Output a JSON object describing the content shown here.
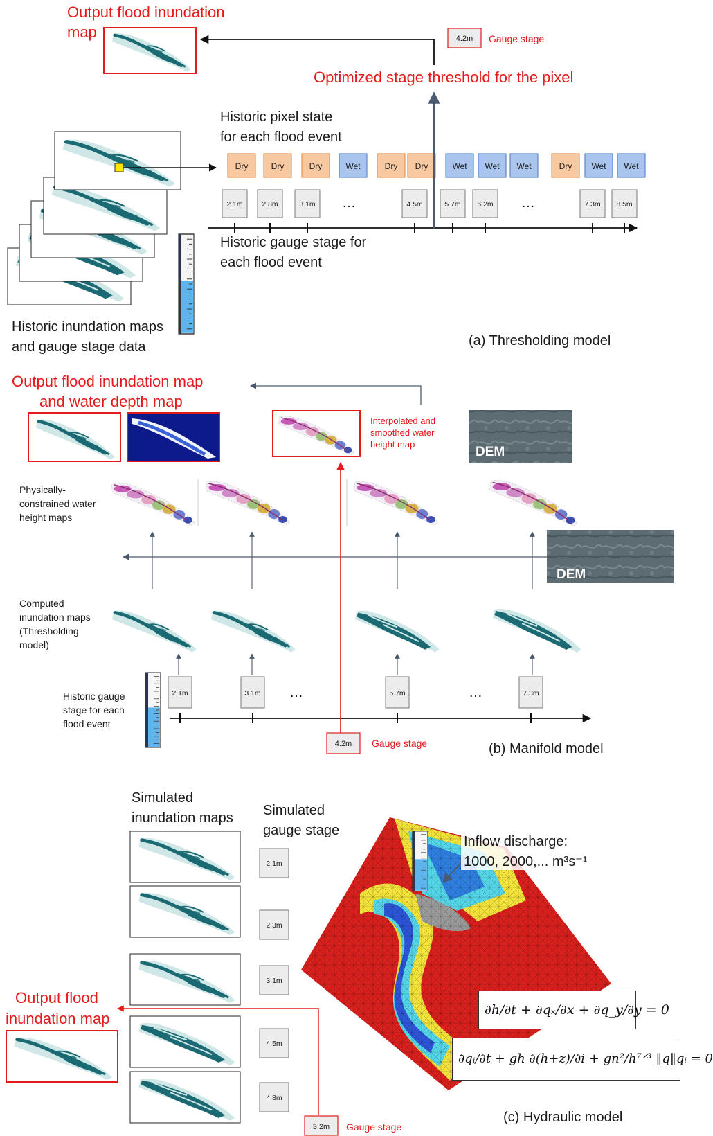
{
  "panel_a": {
    "output_title": [
      "Output flood inundation",
      "map"
    ],
    "gauge_value": "4.2m",
    "gauge_label": "Gauge stage",
    "threshold_label": "Optimized stage threshold for the pixel",
    "pixel_state_title": [
      "Historic pixel state",
      "for each flood event"
    ],
    "states": [
      "Dry",
      "Dry",
      "Dry",
      "Wet",
      "Dry",
      "Dry",
      "Wet",
      "Wet",
      "Wet",
      "Dry",
      "Wet",
      "Wet"
    ],
    "stages": [
      "2.1m",
      "2.8m",
      "3.1m",
      "…",
      "4.5m",
      "5.7m",
      "6.2m",
      "…",
      "7.3m",
      "8.5m"
    ],
    "gauge_stage_title": [
      "Historic gauge stage for",
      "each flood event"
    ],
    "maps_caption": [
      "Historic inundation maps",
      "and gauge stage data"
    ],
    "caption": "(a) Thresholding model"
  },
  "panel_b": {
    "output_title": [
      "Output flood inundation map",
      "and water depth map"
    ],
    "interp_label": [
      "Interpolated and",
      "smoothed water",
      "height map"
    ],
    "dem": "DEM",
    "phys_label": [
      "Physically-",
      "constrained water",
      "height maps"
    ],
    "computed_label": [
      "Computed",
      "inundation maps",
      "(Thresholding",
      "model)"
    ],
    "historic_label": [
      "Historic gauge",
      "stage for each",
      "flood event"
    ],
    "stages": [
      "2.1m",
      "3.1m",
      "…",
      "5.7m",
      "…",
      "7.3m"
    ],
    "gauge_value": "4.2m",
    "gauge_label": "Gauge stage",
    "caption": "(b) Manifold model"
  },
  "panel_c": {
    "sim_maps_title": [
      "Simulated",
      "inundation maps"
    ],
    "sim_stage_title": [
      "Simulated",
      "gauge stage"
    ],
    "stages": [
      "2.1m",
      "2.3m",
      "3.1m",
      "4.5m",
      "4.8m"
    ],
    "inflow": [
      "Inflow discharge:",
      "1000, 2000,... m³s⁻¹"
    ],
    "output_title": [
      "Output flood",
      "inundation map"
    ],
    "gauge_value": "3.2m",
    "gauge_label": "Gauge stage",
    "eq1": "∂h/∂t + ∂qₓ/∂x + ∂q_y/∂y = 0",
    "eq2": "∂qᵢ/∂t + gh ∂(h+z)/∂i + gn²/h⁷ᐟ³ ‖q‖qᵢ = 0",
    "caption": "(c) Hydraulic model"
  },
  "colors": {
    "accent_red": "#e31b1b",
    "dry": "#f8c9a0",
    "dry_border": "#e79450",
    "wet": "#a9c5ee",
    "wet_border": "#5f86c8",
    "river": "#1b6a73",
    "floodplain": "#cfe7e6",
    "axis": "#4a5a70"
  }
}
